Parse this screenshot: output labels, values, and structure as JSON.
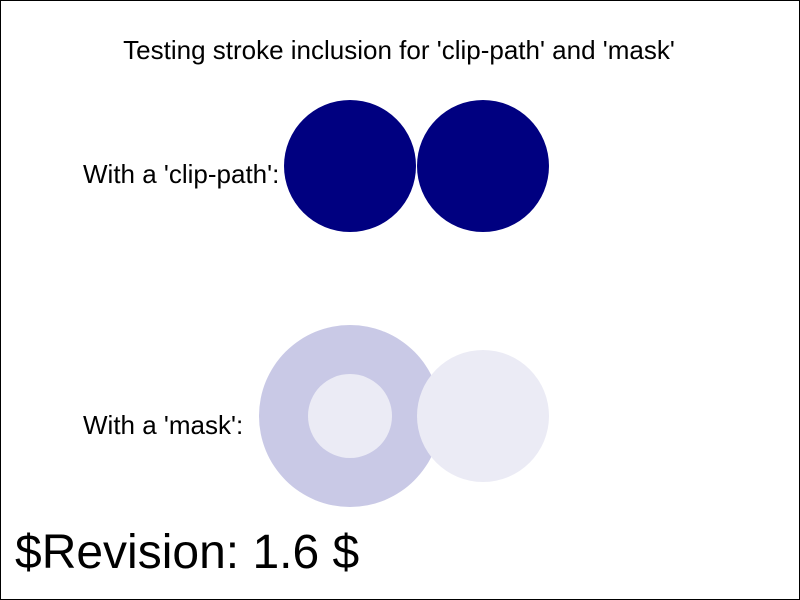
{
  "header": {
    "title": "Testing stroke inclusion for 'clip-path' and 'mask'"
  },
  "clip_section": {
    "label": "With a 'clip-path':",
    "color": "#000080"
  },
  "mask_section": {
    "label": "With a 'mask':",
    "ring_color": "#c9c9e6",
    "inner_color": "#ebebf5",
    "side_color": "#ebebf5"
  },
  "footer": {
    "revision": "$Revision: 1.6 $"
  }
}
